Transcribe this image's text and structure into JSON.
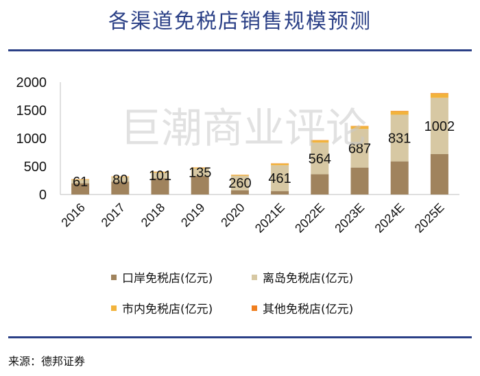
{
  "title": "各渠道免税店销售规模预测",
  "watermark": "巨潮商业评论",
  "source": "来源：德邦证券",
  "colors": {
    "title": "#2a3f86",
    "rule": "#2a3f86",
    "series": [
      "#a0835d",
      "#d7c8a3",
      "#f2b33c",
      "#f07f1f"
    ]
  },
  "chart_data": {
    "type": "bar",
    "stacked": true,
    "categories": [
      "2016",
      "2017",
      "2018",
      "2019",
      "2020",
      "2021E",
      "2022E",
      "2023E",
      "2024E",
      "2025E"
    ],
    "ylim": [
      0,
      2000
    ],
    "yticks": [
      0,
      500,
      1000,
      1500,
      2000
    ],
    "series": [
      {
        "name": "口岸免税店(亿元)",
        "values": [
          200,
          230,
          290,
          330,
          75,
          60,
          360,
          480,
          590,
          720
        ]
      },
      {
        "name": "离岛免税店(亿元)",
        "values": [
          61,
          80,
          101,
          135,
          260,
          461,
          564,
          687,
          831,
          1002
        ]
      },
      {
        "name": "市内免税店(亿元)",
        "values": [
          10,
          10,
          12,
          15,
          15,
          30,
          40,
          50,
          60,
          75
        ]
      },
      {
        "name": "其他免税店(亿元)",
        "values": [
          3,
          3,
          3,
          3,
          3,
          5,
          5,
          5,
          8,
          10
        ]
      }
    ],
    "data_labels": [
      "61",
      "80",
      "101",
      "135",
      "260",
      "461",
      "564",
      "687",
      "831",
      "1002"
    ],
    "legend": "bottom"
  }
}
